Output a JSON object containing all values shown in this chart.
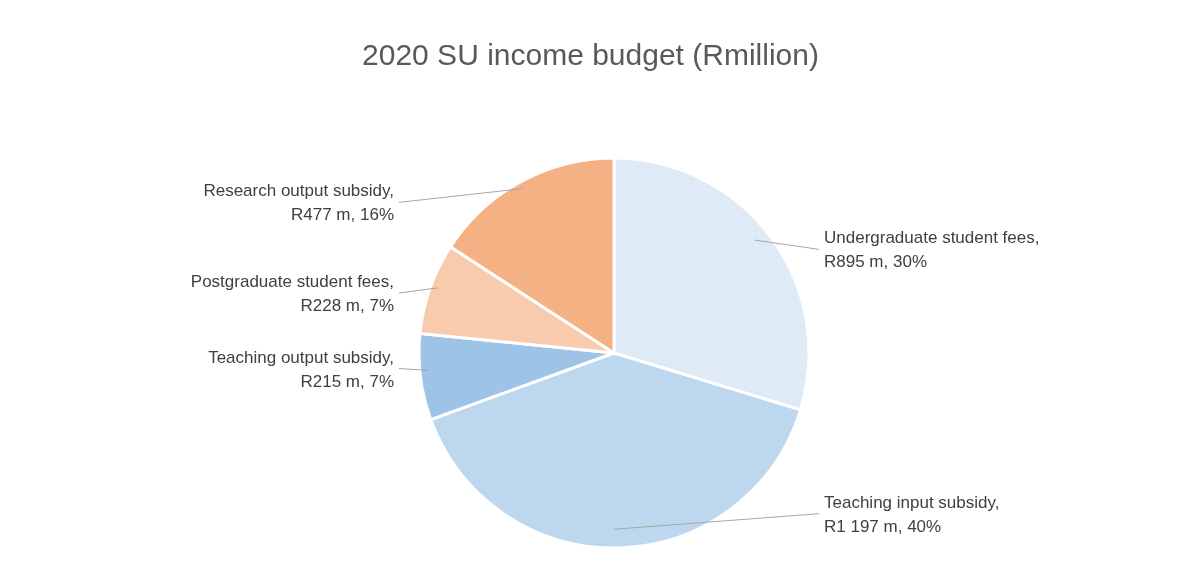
{
  "chart_data": {
    "type": "pie",
    "title": "2020 SU income budget (Rmillion)",
    "categories": [
      null,
      null,
      null,
      null,
      null
    ],
    "values": [
      895,
      1197,
      215,
      228,
      477
    ],
    "value_labels": [
      "Undergraduate student fees, R895 m, 30%",
      "Teaching input subsidy, R1 197 m, 40%",
      "Teaching output subsidy, R215 m, 7%",
      "Postgraduate student fees, R228 m, 7%",
      "Research output subsidy, R477 m, 16%"
    ],
    "colors": [
      "#deeaf6",
      "#bdd7ee",
      "#9dc3e6",
      "#f8cbad",
      "#f4b183"
    ],
    "legend": false
  }
}
